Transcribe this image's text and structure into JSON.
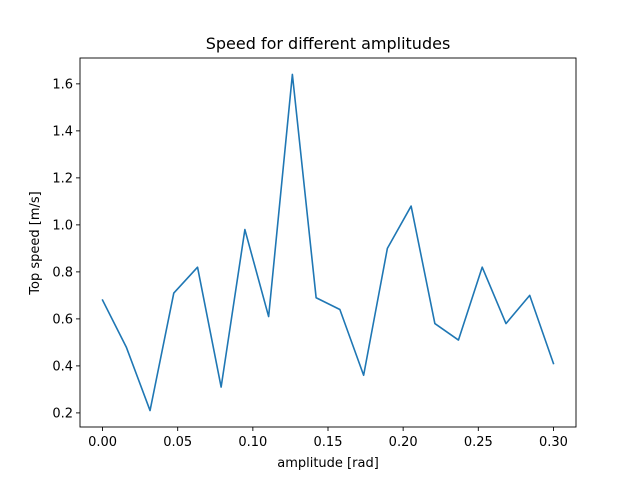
{
  "chart_data": {
    "type": "line",
    "title": "Speed for different amplitudes",
    "xlabel": "amplitude [rad]",
    "ylabel": "Top speed [m/s]",
    "xlim": [
      -0.015,
      0.315
    ],
    "ylim": [
      0.14,
      1.71
    ],
    "xticks": [
      {
        "value": 0.0,
        "label": "0.00"
      },
      {
        "value": 0.05,
        "label": "0.05"
      },
      {
        "value": 0.1,
        "label": "0.10"
      },
      {
        "value": 0.15,
        "label": "0.15"
      },
      {
        "value": 0.2,
        "label": "0.20"
      },
      {
        "value": 0.25,
        "label": "0.25"
      },
      {
        "value": 0.3,
        "label": "0.30"
      }
    ],
    "yticks": [
      {
        "value": 0.2,
        "label": "0.2"
      },
      {
        "value": 0.4,
        "label": "0.4"
      },
      {
        "value": 0.6,
        "label": "0.6"
      },
      {
        "value": 0.8,
        "label": "0.8"
      },
      {
        "value": 1.0,
        "label": "1.0"
      },
      {
        "value": 1.2,
        "label": "1.2"
      },
      {
        "value": 1.4,
        "label": "1.4"
      },
      {
        "value": 1.6,
        "label": "1.6"
      }
    ],
    "grid": false,
    "series": [
      {
        "color": "#1f77b4",
        "x": [
          0.0,
          0.0158,
          0.0316,
          0.0474,
          0.0632,
          0.0789,
          0.0947,
          0.1105,
          0.1263,
          0.1421,
          0.1579,
          0.1737,
          0.1895,
          0.2053,
          0.2211,
          0.2368,
          0.2526,
          0.2684,
          0.2842,
          0.3
        ],
        "y": [
          0.68,
          0.48,
          0.21,
          0.71,
          0.82,
          0.31,
          0.98,
          0.61,
          1.64,
          0.69,
          0.64,
          0.36,
          0.9,
          1.08,
          0.58,
          0.51,
          0.82,
          0.58,
          0.7,
          0.41
        ]
      }
    ]
  }
}
